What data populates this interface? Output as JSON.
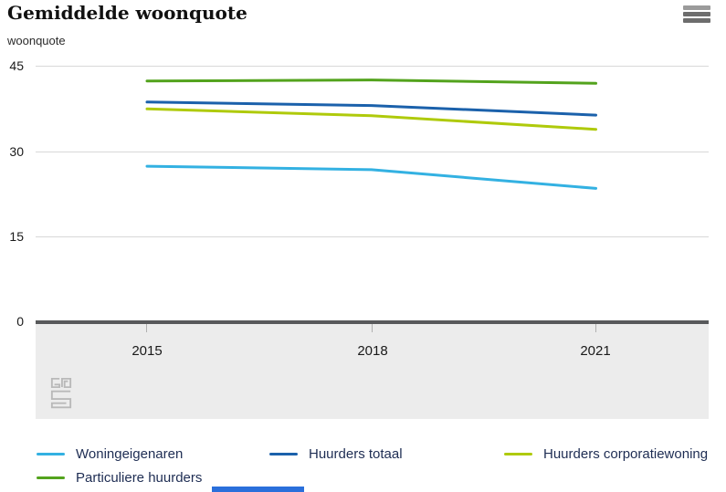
{
  "header": {
    "title": "Gemiddelde woonquote",
    "subtitle": "woonquote",
    "menu_icon": "hamburger-menu-icon"
  },
  "branding": {
    "logo_icon": "cbs-logo"
  },
  "colors": {
    "gridline": "#d8d8d8",
    "zero_axis": "#58595b",
    "below_axis_band": "#ececec",
    "legend_text": "#1e2d53",
    "bottom_bar": "#2a6fdb"
  },
  "chart_data": {
    "type": "line",
    "title": "Gemiddelde woonquote",
    "ylabel": "woonquote",
    "xlabel": "",
    "x": [
      2015,
      2018,
      2021
    ],
    "x_tick_labels": [
      "2015",
      "2018",
      "2021"
    ],
    "y_tick_labels": [
      "45",
      "30",
      "15",
      "0"
    ],
    "y_ticks": [
      45,
      30,
      15,
      0
    ],
    "ylim": [
      0,
      45
    ],
    "grid": true,
    "legend_position": "bottom",
    "series": [
      {
        "name": "Woningeigenaren",
        "color": "#33b1e2",
        "values": [
          27.3,
          26.7,
          23.4
        ]
      },
      {
        "name": "Huurders totaal",
        "color": "#1b61ab",
        "values": [
          38.6,
          38.0,
          36.3
        ]
      },
      {
        "name": "Huurders corporatiewoning",
        "color": "#afca0b",
        "values": [
          37.4,
          36.2,
          33.8
        ]
      },
      {
        "name": "Particuliere huurders",
        "color": "#53a31d",
        "values": [
          42.3,
          42.5,
          41.9
        ]
      }
    ]
  }
}
